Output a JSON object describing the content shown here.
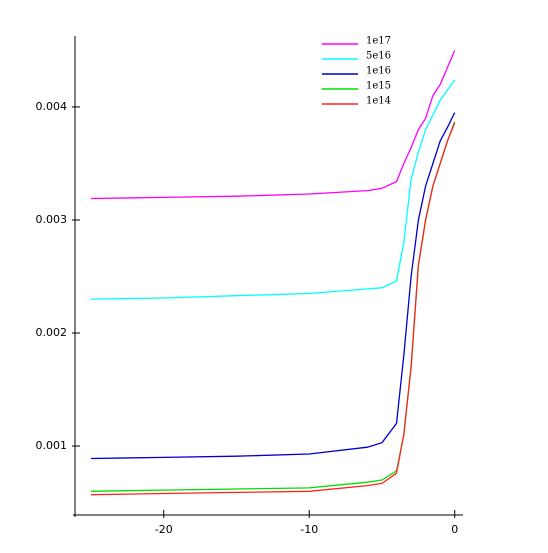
{
  "chart_data": {
    "type": "line",
    "x": [
      -25,
      -20,
      -15,
      -10,
      -6,
      -5,
      -4,
      -3.5,
      -3,
      -2.5,
      -2,
      -1.5,
      -1,
      -0.5,
      0
    ],
    "series": [
      {
        "name": "1e17",
        "color": "#ff00ff",
        "values": [
          0.00319,
          0.0032,
          0.00321,
          0.00323,
          0.00326,
          0.00328,
          0.00334,
          0.0035,
          0.00364,
          0.0038,
          0.0039,
          0.0041,
          0.0042,
          0.00435,
          0.0045
        ]
      },
      {
        "name": "5e16",
        "color": "#00ffff",
        "values": [
          0.0023,
          0.00231,
          0.00233,
          0.00235,
          0.00239,
          0.0024,
          0.00246,
          0.0028,
          0.00336,
          0.0036,
          0.0038,
          0.00393,
          0.00406,
          0.00415,
          0.00424
        ]
      },
      {
        "name": "1e16",
        "color": "#0000cc",
        "values": [
          0.00089,
          0.0009,
          0.00091,
          0.00093,
          0.00099,
          0.00103,
          0.0012,
          0.0018,
          0.0025,
          0.003,
          0.0033,
          0.0035,
          0.0037,
          0.00382,
          0.00395
        ]
      },
      {
        "name": "1e15",
        "color": "#00dd00",
        "values": [
          0.0006,
          0.00061,
          0.00062,
          0.00063,
          0.00068,
          0.0007,
          0.00078,
          0.0011,
          0.0017,
          0.0026,
          0.003,
          0.0033,
          0.0035,
          0.0037,
          0.00387
        ]
      },
      {
        "name": "1e14",
        "color": "#ff2222",
        "values": [
          0.00057,
          0.00058,
          0.00059,
          0.0006,
          0.00065,
          0.00067,
          0.00076,
          0.0011,
          0.0017,
          0.0026,
          0.003,
          0.0033,
          0.0035,
          0.0037,
          0.00386
        ]
      }
    ],
    "xlim": [
      -26.1,
      0.5
    ],
    "ylim": [
      0.00039,
      0.00461
    ],
    "xticks": [
      -20,
      -10,
      0
    ],
    "yticks": [
      0.001,
      0.002,
      0.003,
      0.004
    ],
    "legend": "upper-right"
  }
}
